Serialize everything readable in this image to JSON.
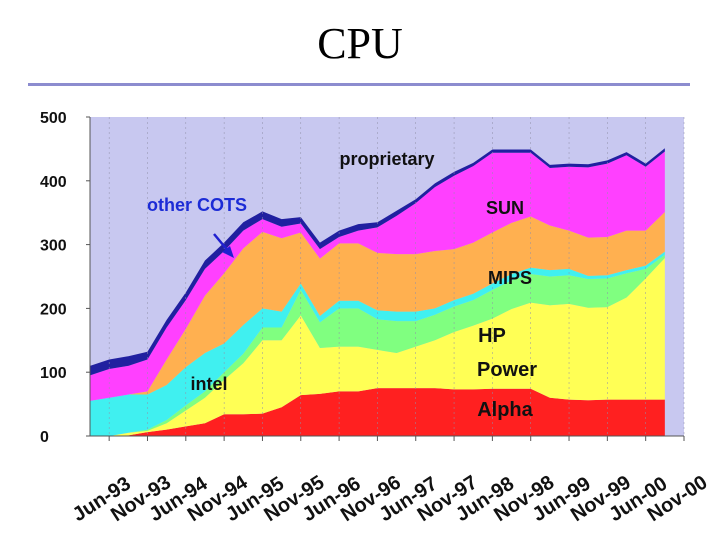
{
  "slide": {
    "title": "CPU"
  },
  "colors": {
    "background": "#ffffff",
    "plot_background": "#c8c8f0",
    "title_rule": "#8c8ccf",
    "arrow": "#2020d0"
  },
  "chart_data": {
    "type": "area",
    "stacked": true,
    "title": "",
    "xlabel": "",
    "ylabel": "",
    "ylim": [
      0,
      500
    ],
    "yticks": [
      0,
      100,
      200,
      300,
      400,
      500
    ],
    "grid": true,
    "x_positions": [
      0,
      1,
      2,
      3,
      4,
      5,
      6,
      7,
      8,
      9,
      10,
      11,
      12,
      13,
      14,
      15
    ],
    "x_ticks": [
      0,
      1,
      2,
      3,
      4,
      5,
      6,
      7,
      8,
      9,
      10,
      11,
      12,
      13,
      14,
      15
    ],
    "x_tick_labels": [
      "Jun-93",
      "Nov-93",
      "Jun-94",
      "Nov-94",
      "Jun-95",
      "Nov-95",
      "Jun-96",
      "Nov-96",
      "Jun-97",
      "Nov-97",
      "Jun-98",
      "Nov-98",
      "Jun-99",
      "Nov-99",
      "Jun-00",
      "Nov-00"
    ],
    "x": [
      0,
      0.5,
      1,
      1.5,
      2,
      2.5,
      3,
      3.5,
      4,
      4.5,
      5,
      5.5,
      6,
      6.5,
      7,
      7.5,
      8,
      8.5,
      9,
      9.5,
      10,
      10.5,
      11,
      11.5,
      12,
      12.5,
      13,
      13.5,
      14,
      14.5,
      15
    ],
    "series": [
      {
        "name": "Alpha",
        "color": "#ff2020",
        "values": [
          0,
          0,
          1,
          6,
          10,
          15,
          20,
          34,
          34,
          35,
          45,
          64,
          66,
          70,
          70,
          75,
          75,
          75,
          75,
          73,
          73,
          74,
          74,
          74,
          60,
          57,
          56,
          57,
          57,
          57,
          57
        ]
      },
      {
        "name": "Power",
        "color": "#ffff55",
        "values": [
          0,
          0,
          4,
          2,
          10,
          25,
          40,
          54,
          80,
          115,
          105,
          125,
          72,
          70,
          70,
          60,
          55,
          65,
          75,
          90,
          100,
          110,
          125,
          135,
          145,
          150,
          145,
          145,
          160,
          190,
          222
        ]
      },
      {
        "name": "HP",
        "color": "#80ff80",
        "values": [
          0,
          0,
          0,
          2,
          5,
          8,
          10,
          12,
          15,
          20,
          20,
          40,
          40,
          60,
          60,
          48,
          50,
          40,
          40,
          40,
          40,
          45,
          45,
          45,
          45,
          45,
          45,
          45,
          38,
          15,
          5
        ]
      },
      {
        "name": "intel",
        "color": "#40f0f0",
        "values": [
          55,
          60,
          60,
          55,
          55,
          60,
          60,
          45,
          45,
          30,
          25,
          10,
          10,
          12,
          12,
          14,
          15,
          15,
          10,
          10,
          10,
          10,
          10,
          10,
          10,
          10,
          5,
          5,
          5,
          5,
          5
        ]
      },
      {
        "name": "MIPS",
        "color": "#ffb050",
        "values": [
          0,
          0,
          0,
          5,
          40,
          60,
          90,
          110,
          120,
          120,
          115,
          80,
          90,
          90,
          90,
          90,
          90,
          90,
          90,
          80,
          80,
          80,
          80,
          80,
          70,
          60,
          60,
          60,
          62,
          55,
          62
        ]
      },
      {
        "name": "SUN",
        "color": "#ff40ff",
        "values": [
          40,
          45,
          45,
          50,
          50,
          45,
          42,
          35,
          28,
          20,
          18,
          14,
          15,
          10,
          20,
          40,
          60,
          80,
          100,
          115,
          120,
          125,
          110,
          100,
          90,
          100,
          110,
          115,
          118,
          100,
          95
        ]
      },
      {
        "name": "other COTS",
        "color": "#2020a0",
        "values": [
          15,
          15,
          15,
          12,
          12,
          12,
          13,
          13,
          13,
          12,
          12,
          10,
          10,
          10,
          10,
          8,
          8,
          6,
          6,
          6,
          5,
          5,
          5,
          5,
          5,
          5,
          5,
          5,
          5,
          5,
          5
        ]
      }
    ],
    "annotations": [
      "proprietary",
      "other COTS",
      "SUN",
      "MIPS",
      "HP",
      "Power",
      "intel",
      "Alpha"
    ]
  }
}
